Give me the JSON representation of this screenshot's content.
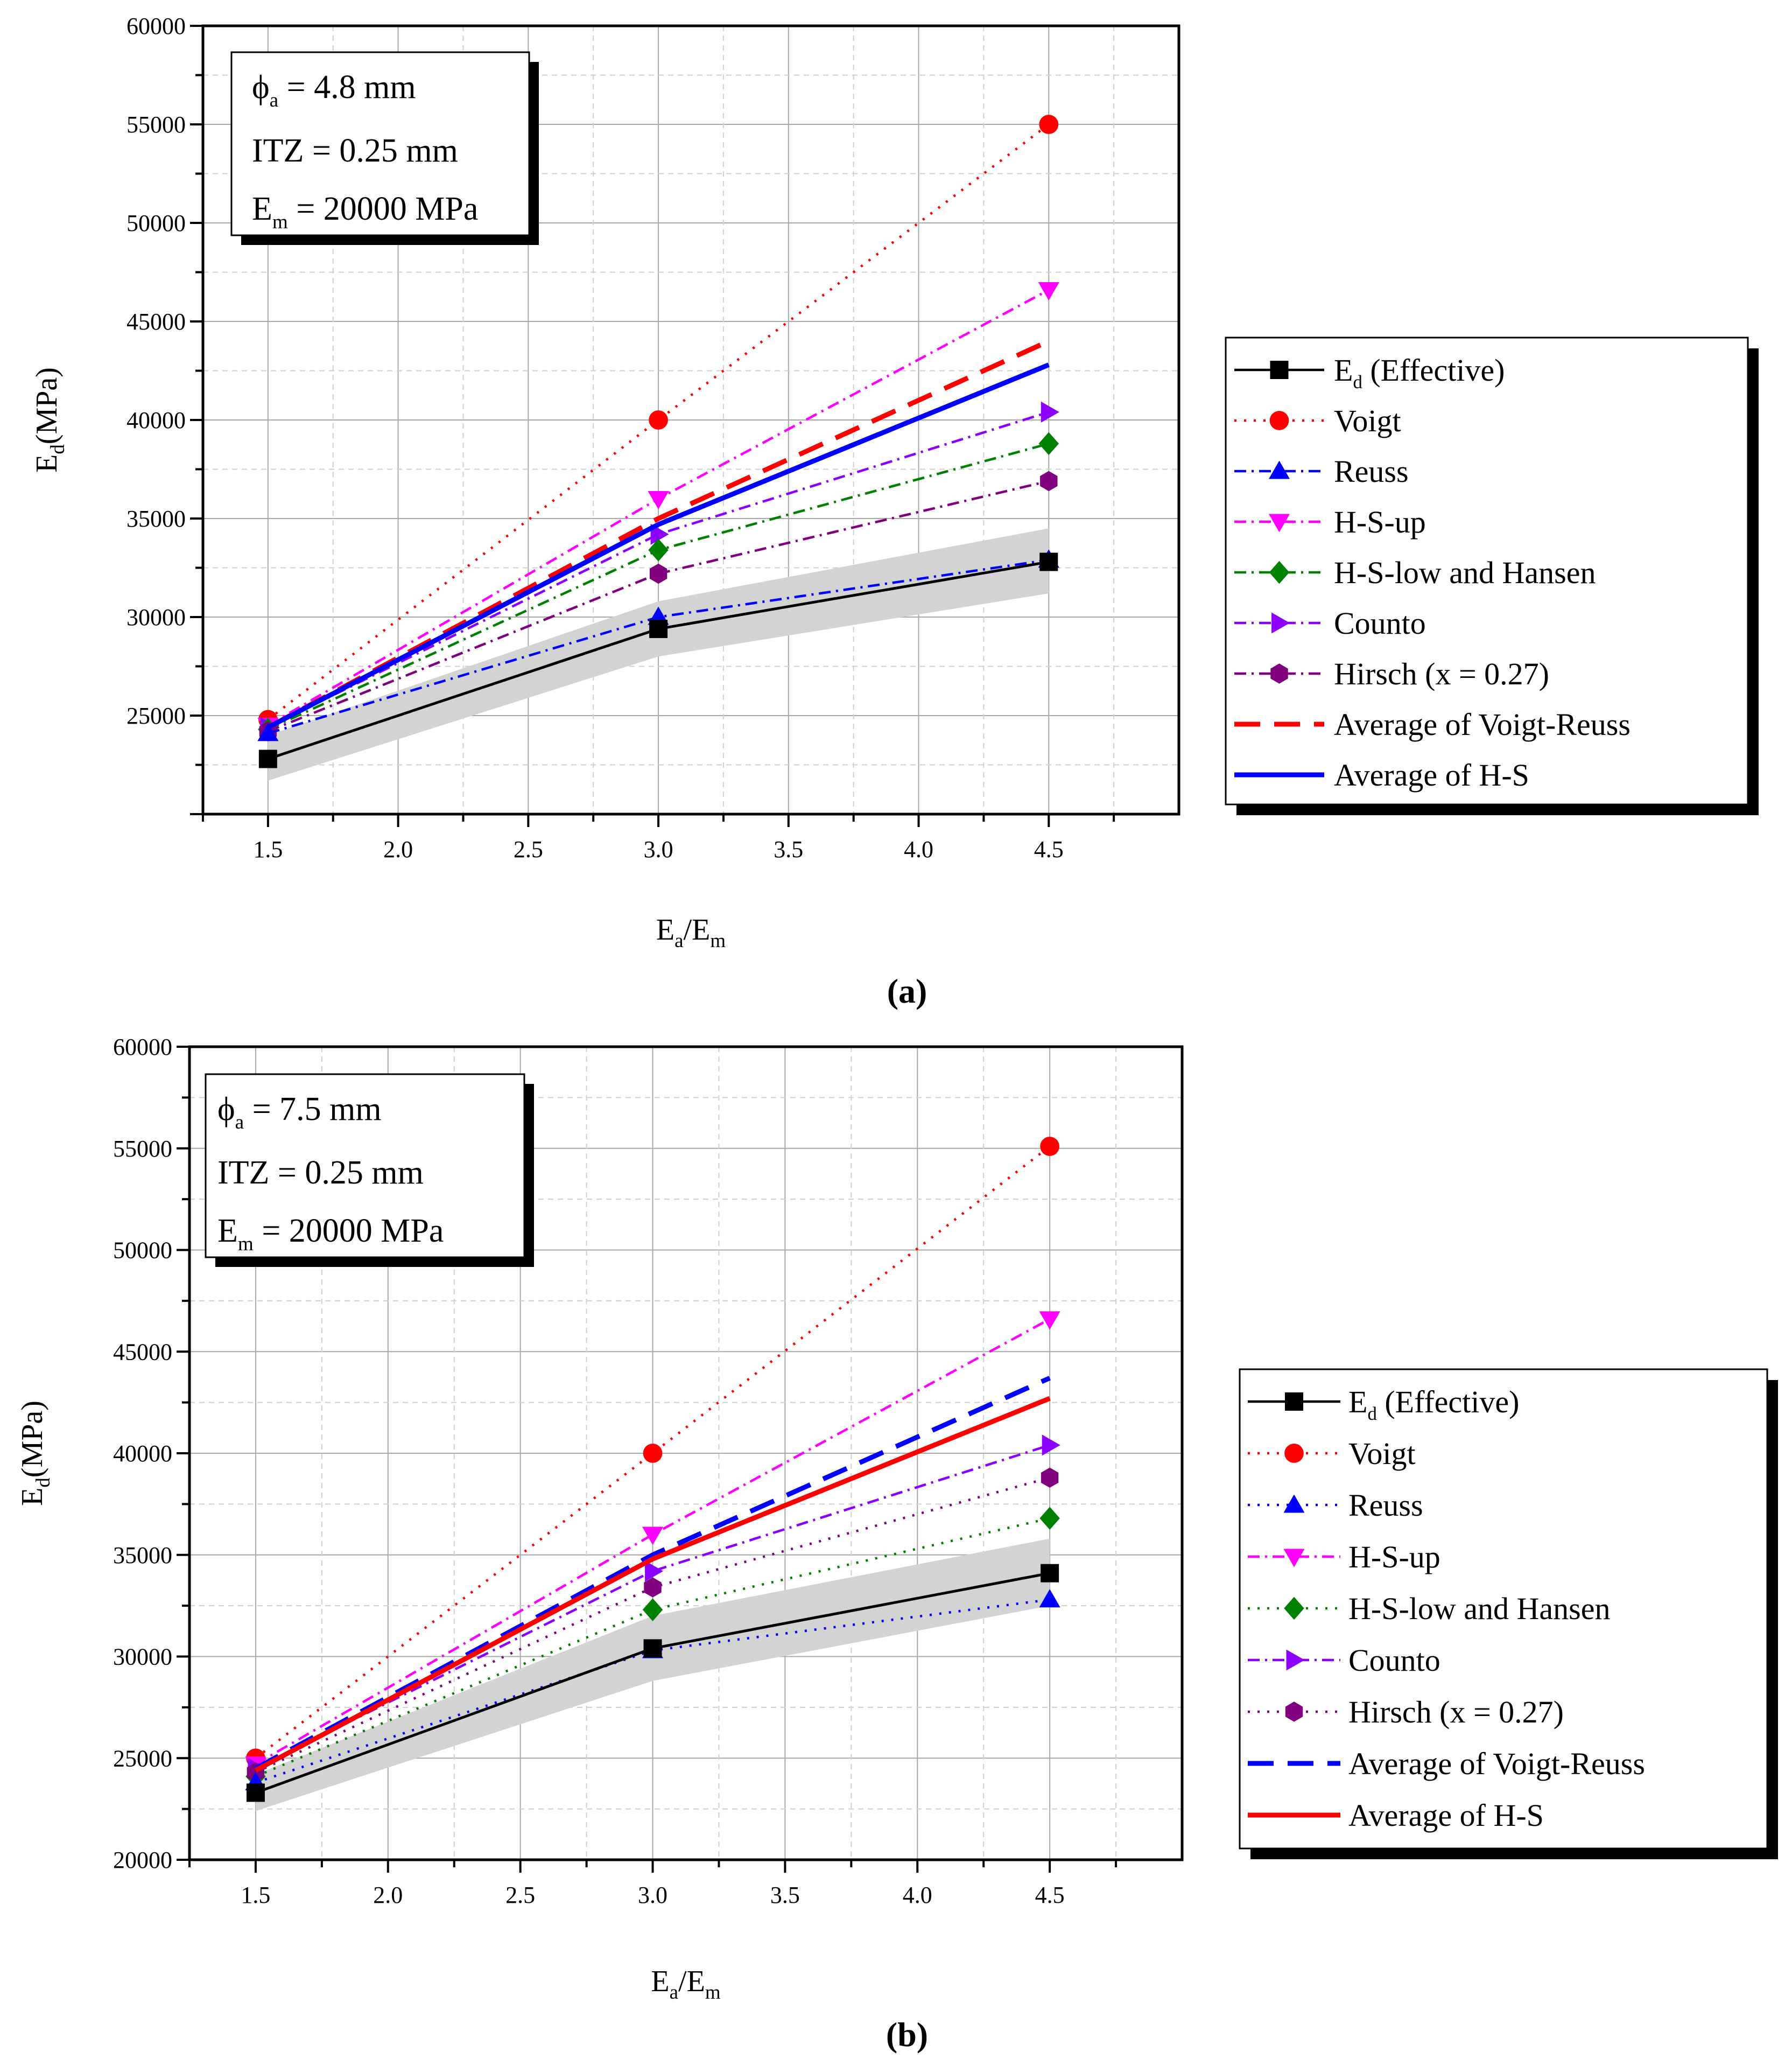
{
  "figure": {
    "panel_labels": [
      "(a)",
      "(b)"
    ]
  },
  "chart_data": [
    {
      "type": "line",
      "panel": "(a)",
      "x": [
        1.5,
        3.0,
        4.5
      ],
      "xlabel": {
        "main": "E",
        "sub1": "a",
        "slash": "/E",
        "sub2": "m"
      },
      "ylabel": {
        "main": "E",
        "sub": "d",
        "unit": "(MPa)"
      },
      "xlim": [
        1.25,
        5.0
      ],
      "ylim": [
        20000,
        60000
      ],
      "xticks": [
        "1.5",
        "2.0",
        "2.5",
        "3.0",
        "3.5",
        "4.0",
        "4.5"
      ],
      "yticks": [
        "25000",
        "30000",
        "35000",
        "40000",
        "45000",
        "50000",
        "55000",
        "60000"
      ],
      "grid": true,
      "legend_position": "right",
      "annotation": {
        "line1_main": "ϕ",
        "line1_sub": "a",
        "line1_rest": " = 4.8 mm",
        "line2": "ITZ = 0.25 mm",
        "line3_main": "E",
        "line3_sub": "m",
        "line3_rest": " = 20000 MPa"
      },
      "band": {
        "lower": [
          21700,
          28000,
          31200
        ],
        "upper": [
          24000,
          30800,
          34500
        ],
        "color": "#d3d3d3"
      },
      "series": [
        {
          "name": "E",
          "name_sub": "d",
          "name_rest": " (Effective)",
          "values": [
            22800,
            29400,
            32800
          ],
          "color": "#000000",
          "marker": "square",
          "dash": "solid"
        },
        {
          "name": "Voigt",
          "values": [
            24800,
            40000,
            55000
          ],
          "color": "#ff0000",
          "marker": "circle",
          "dash": "dot"
        },
        {
          "name": "Reuss",
          "values": [
            24100,
            30000,
            32900
          ],
          "color": "#0000ff",
          "marker": "triangle-up",
          "dash": "dashdot"
        },
        {
          "name": "H-S-up",
          "values": [
            24500,
            36000,
            46600
          ],
          "color": "#ff00ff",
          "marker": "triangle-down",
          "dash": "dashdot"
        },
        {
          "name": "H-S-low and Hansen",
          "values": [
            24300,
            33400,
            38800
          ],
          "color": "#008000",
          "marker": "diamond",
          "dash": "dashdot"
        },
        {
          "name": "Counto",
          "values": [
            24400,
            34200,
            40400
          ],
          "color": "#8b00ff",
          "marker": "triangle-right",
          "dash": "dashdot"
        },
        {
          "name": "Hirsch (x = 0.27)",
          "values": [
            24200,
            32200,
            36900
          ],
          "color": "#800080",
          "marker": "hexagon",
          "dash": "dashdot"
        },
        {
          "name": "Average of Voigt-Reuss",
          "values": [
            24400,
            35000,
            44000
          ],
          "color": "#ff0000",
          "marker": "none",
          "dash": "dash"
        },
        {
          "name": "Average of H-S",
          "values": [
            24400,
            34700,
            42800
          ],
          "color": "#0000ff",
          "marker": "none",
          "dash": "solid"
        }
      ]
    },
    {
      "type": "line",
      "panel": "(b)",
      "x": [
        1.5,
        3.0,
        4.5
      ],
      "xlabel": {
        "main": "E",
        "sub1": "a",
        "slash": "/E",
        "sub2": "m"
      },
      "ylabel": {
        "main": "E",
        "sub": "d",
        "unit": "(MPa)"
      },
      "xlim": [
        1.25,
        5.0
      ],
      "ylim": [
        20000,
        60000
      ],
      "xticks": [
        "1.5",
        "2.0",
        "2.5",
        "3.0",
        "3.5",
        "4.0",
        "4.5"
      ],
      "yticks": [
        "20000",
        "25000",
        "30000",
        "35000",
        "40000",
        "45000",
        "50000",
        "55000",
        "60000"
      ],
      "grid": true,
      "legend_position": "right",
      "annotation": {
        "line1_main": "ϕ",
        "line1_sub": "a",
        "line1_rest": " = 7.5 mm",
        "line2": "ITZ = 0.25 mm",
        "line3_main": "E",
        "line3_sub": "m",
        "line3_rest": " = 20000 MPa"
      },
      "band": {
        "lower": [
          22400,
          28800,
          32500
        ],
        "upper": [
          24200,
          32000,
          35800
        ],
        "color": "#d3d3d3"
      },
      "series": [
        {
          "name": "E",
          "name_sub": "d",
          "name_rest": " (Effective)",
          "values": [
            23300,
            30400,
            34100
          ],
          "color": "#000000",
          "marker": "square",
          "dash": "solid"
        },
        {
          "name": "Voigt",
          "values": [
            25000,
            40000,
            55100
          ],
          "color": "#ff0000",
          "marker": "circle",
          "dash": "dot"
        },
        {
          "name": "Reuss",
          "values": [
            23800,
            30300,
            32800
          ],
          "color": "#0000ff",
          "marker": "triangle-up",
          "dash": "dot"
        },
        {
          "name": "H-S-up",
          "values": [
            24700,
            36000,
            46600
          ],
          "color": "#ff00ff",
          "marker": "triangle-down",
          "dash": "dashdot"
        },
        {
          "name": "H-S-low and Hansen",
          "values": [
            24100,
            32300,
            36800
          ],
          "color": "#008000",
          "marker": "diamond",
          "dash": "dot"
        },
        {
          "name": "Counto",
          "values": [
            24500,
            34200,
            40400
          ],
          "color": "#8b00ff",
          "marker": "triangle-right",
          "dash": "dashdot"
        },
        {
          "name": "Hirsch (x = 0.27)",
          "values": [
            24300,
            33400,
            38800
          ],
          "color": "#800080",
          "marker": "hexagon",
          "dash": "dot"
        },
        {
          "name": "Average of Voigt-Reuss",
          "values": [
            24500,
            35000,
            43700
          ],
          "color": "#0000ff",
          "marker": "none",
          "dash": "dash"
        },
        {
          "name": "Average of H-S",
          "values": [
            24400,
            34800,
            42700
          ],
          "color": "#ff0000",
          "marker": "none",
          "dash": "solid"
        }
      ]
    }
  ]
}
